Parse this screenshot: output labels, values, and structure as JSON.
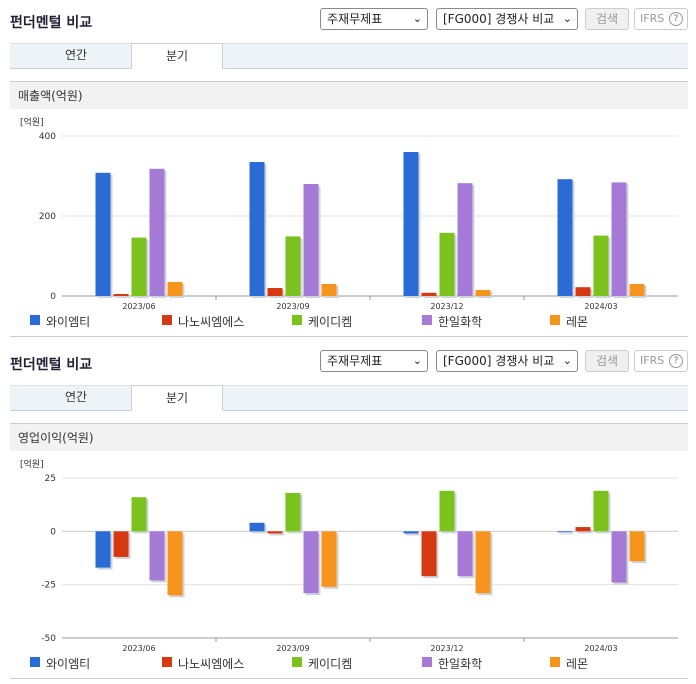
{
  "panels": [
    {
      "title": "펀더멘털 비교",
      "select1": "주재무제표",
      "select2": "[FG000] 경쟁사 비교",
      "search_label": "검색",
      "ifrs_label": "IFRS",
      "help_glyph": "?",
      "tabs": [
        "연간",
        "분기"
      ],
      "active_tab": 1,
      "subtitle": "매출액(억원)"
    },
    {
      "title": "펀더멘털 비교",
      "select1": "주재무제표",
      "select2": "[FG000] 경쟁사 비교",
      "search_label": "검색",
      "ifrs_label": "IFRS",
      "help_glyph": "?",
      "tabs": [
        "연간",
        "분기"
      ],
      "active_tab": 1,
      "subtitle": "영업이익(억원)"
    }
  ],
  "chart_data": [
    {
      "type": "bar",
      "unit_label": "[억원]",
      "categories": [
        "2023/06",
        "2023/09",
        "2023/12",
        "2024/03"
      ],
      "ylim": [
        0,
        400
      ],
      "yticks": [
        0,
        200,
        400
      ],
      "grid": true,
      "legend_position": "bottom",
      "series": [
        {
          "name": "와이엠티",
          "color": "#2a6bd6",
          "values": [
            308,
            335,
            360,
            292
          ]
        },
        {
          "name": "나노씨엠에스",
          "color": "#d6380f",
          "values": [
            5,
            20,
            8,
            22
          ]
        },
        {
          "name": "케이디켐",
          "color": "#7cc21c",
          "values": [
            146,
            149,
            158,
            151
          ]
        },
        {
          "name": "한일화학",
          "color": "#a57ad6",
          "values": [
            318,
            280,
            282,
            284
          ]
        },
        {
          "name": "레몬",
          "color": "#f7941d",
          "values": [
            35,
            30,
            15,
            30
          ]
        }
      ]
    },
    {
      "type": "bar",
      "unit_label": "[억원]",
      "categories": [
        "2023/06",
        "2023/09",
        "2023/12",
        "2024/03"
      ],
      "ylim": [
        -50,
        25
      ],
      "yticks": [
        -50,
        -25,
        0,
        25
      ],
      "grid": true,
      "legend_position": "bottom",
      "series": [
        {
          "name": "와이엠티",
          "color": "#2a6bd6",
          "values": [
            -17,
            4,
            -1,
            0
          ]
        },
        {
          "name": "나노씨엠에스",
          "color": "#d6380f",
          "values": [
            -12,
            -1,
            -21,
            2
          ]
        },
        {
          "name": "케이디켐",
          "color": "#7cc21c",
          "values": [
            16,
            18,
            19,
            19
          ]
        },
        {
          "name": "한일화학",
          "color": "#a57ad6",
          "values": [
            -23,
            -29,
            -21,
            -24
          ]
        },
        {
          "name": "레몬",
          "color": "#f7941d",
          "values": [
            -30,
            -26,
            -29,
            -14
          ]
        }
      ]
    }
  ]
}
